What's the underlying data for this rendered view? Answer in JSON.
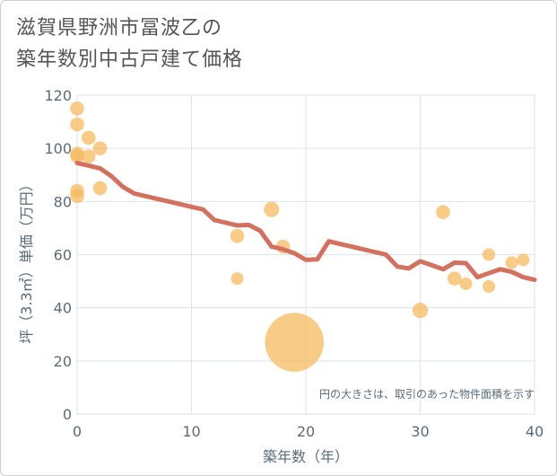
{
  "chart_data": {
    "type": "scatter",
    "title_line1": "滋賀県野洲市冨波乙の",
    "title_line2": "築年数別中古戸建て価格",
    "xlabel": "築年数（年）",
    "ylabel": "坪（3.3㎡）単価（万円）",
    "xlim": [
      0,
      40
    ],
    "ylim": [
      0,
      120
    ],
    "xticks": [
      "0",
      "10",
      "20",
      "30",
      "40"
    ],
    "yticks": [
      "0",
      "20",
      "40",
      "60",
      "80",
      "100",
      "120"
    ],
    "note": "円の大きさは、取引のあった物件面積を示す",
    "colors": {
      "bubble": "#f5b95f",
      "line": "#d4705e",
      "grid": "#dbe3ec"
    },
    "points": [
      {
        "x": 0,
        "y": 115,
        "s": 1
      },
      {
        "x": 0,
        "y": 109,
        "s": 1
      },
      {
        "x": 0,
        "y": 98,
        "s": 1
      },
      {
        "x": 0,
        "y": 97,
        "s": 1
      },
      {
        "x": 0,
        "y": 84,
        "s": 1
      },
      {
        "x": 0,
        "y": 82,
        "s": 1
      },
      {
        "x": 1,
        "y": 104,
        "s": 1
      },
      {
        "x": 1,
        "y": 97,
        "s": 1
      },
      {
        "x": 2,
        "y": 100,
        "s": 1
      },
      {
        "x": 2,
        "y": 85,
        "s": 1
      },
      {
        "x": 14,
        "y": 67,
        "s": 1
      },
      {
        "x": 14,
        "y": 51,
        "s": 0.9
      },
      {
        "x": 17,
        "y": 77,
        "s": 1.1
      },
      {
        "x": 18,
        "y": 63,
        "s": 1
      },
      {
        "x": 19,
        "y": 27,
        "s": 4.2
      },
      {
        "x": 30,
        "y": 39,
        "s": 1.1
      },
      {
        "x": 32,
        "y": 76,
        "s": 1
      },
      {
        "x": 33,
        "y": 51,
        "s": 1
      },
      {
        "x": 34,
        "y": 49,
        "s": 0.9
      },
      {
        "x": 36,
        "y": 60,
        "s": 0.9
      },
      {
        "x": 36,
        "y": 48,
        "s": 0.9
      },
      {
        "x": 38,
        "y": 57,
        "s": 0.9
      },
      {
        "x": 39,
        "y": 58,
        "s": 0.9
      }
    ],
    "trend": [
      {
        "x": 0,
        "y": 94.5
      },
      {
        "x": 2,
        "y": 92.5
      },
      {
        "x": 3,
        "y": 89.5
      },
      {
        "x": 4,
        "y": 85.5
      },
      {
        "x": 5,
        "y": 83
      },
      {
        "x": 6,
        "y": 82
      },
      {
        "x": 7,
        "y": 81
      },
      {
        "x": 8,
        "y": 80
      },
      {
        "x": 9,
        "y": 79
      },
      {
        "x": 10,
        "y": 78
      },
      {
        "x": 11,
        "y": 77
      },
      {
        "x": 12,
        "y": 73
      },
      {
        "x": 13,
        "y": 72
      },
      {
        "x": 14,
        "y": 71
      },
      {
        "x": 15,
        "y": 71.2
      },
      {
        "x": 16,
        "y": 69
      },
      {
        "x": 17,
        "y": 63
      },
      {
        "x": 18,
        "y": 62
      },
      {
        "x": 19,
        "y": 60.5
      },
      {
        "x": 20,
        "y": 58
      },
      {
        "x": 21,
        "y": 58.2
      },
      {
        "x": 22,
        "y": 65
      },
      {
        "x": 23,
        "y": 64
      },
      {
        "x": 24,
        "y": 63
      },
      {
        "x": 25,
        "y": 62
      },
      {
        "x": 26,
        "y": 61
      },
      {
        "x": 27,
        "y": 60
      },
      {
        "x": 28,
        "y": 55.5
      },
      {
        "x": 29,
        "y": 54.8
      },
      {
        "x": 30,
        "y": 57.5
      },
      {
        "x": 31,
        "y": 56
      },
      {
        "x": 32,
        "y": 54.5
      },
      {
        "x": 33,
        "y": 57
      },
      {
        "x": 34,
        "y": 56.8
      },
      {
        "x": 35,
        "y": 51.5
      },
      {
        "x": 36,
        "y": 53
      },
      {
        "x": 37,
        "y": 54.5
      },
      {
        "x": 38,
        "y": 53.5
      },
      {
        "x": 39,
        "y": 51.5
      },
      {
        "x": 40,
        "y": 50.5
      }
    ]
  }
}
